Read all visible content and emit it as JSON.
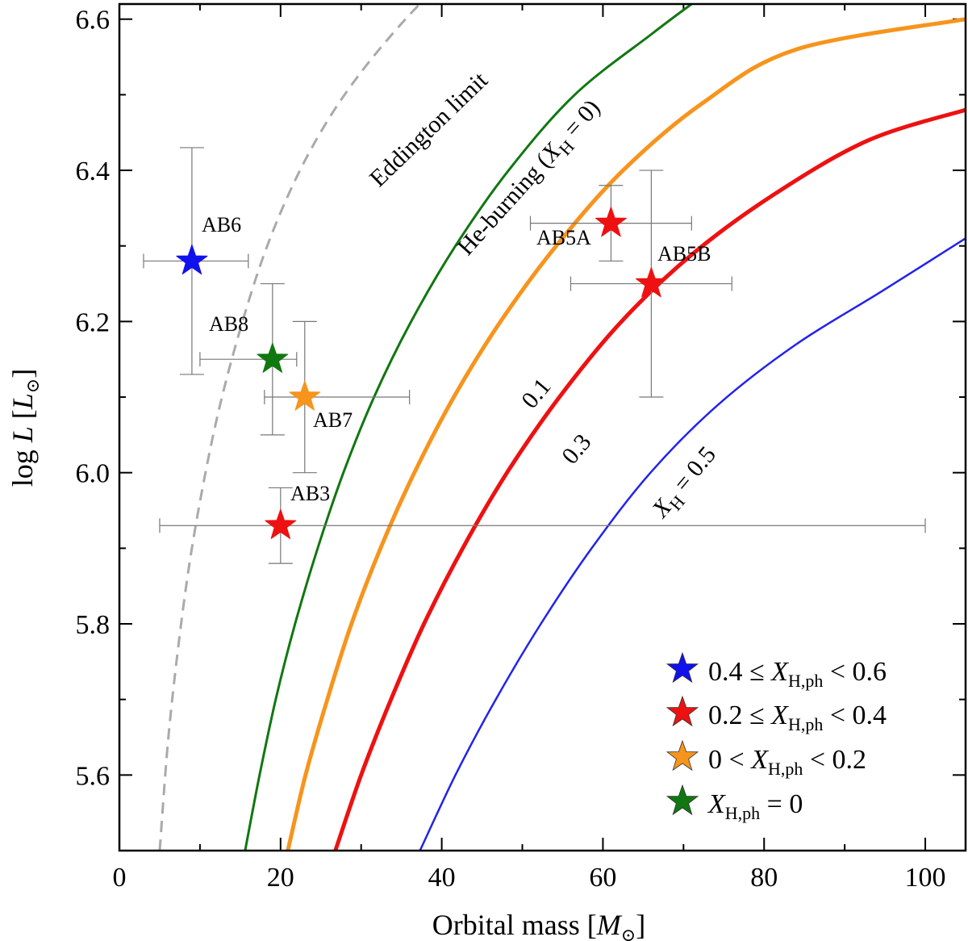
{
  "chart_data": {
    "type": "scatter",
    "xlabel_main": "Orbital mass [",
    "xlabel_sym": "M",
    "xlabel_sub": "⊙",
    "xlabel_end": "]",
    "ylabel_main": "log ",
    "ylabel_sym": "L",
    "ylabel_bracket_open": " [",
    "ylabel_sym2": "L",
    "ylabel_sub": "⊙",
    "ylabel_end": "]",
    "xlim": [
      0,
      105
    ],
    "ylim": [
      5.5,
      6.62
    ],
    "xticks": [
      0,
      20,
      40,
      60,
      80,
      100
    ],
    "xtick_labels": [
      "0",
      "20",
      "40",
      "60",
      "80",
      "100"
    ],
    "yticks": [
      5.6,
      5.8,
      6.0,
      6.2,
      6.4,
      6.6
    ],
    "ytick_labels": [
      "5.6",
      "5.8",
      "6.0",
      "6.2",
      "6.4",
      "6.6"
    ],
    "curves": [
      {
        "name": "Eddington limit",
        "label": "Eddington limit",
        "color": "#aaaaaa",
        "dashed": true,
        "width": 3,
        "points": [
          [
            5.0,
            5.5
          ],
          [
            6,
            5.64
          ],
          [
            7.2,
            5.76
          ],
          [
            8.7,
            5.88
          ],
          [
            10.5,
            5.99
          ],
          [
            12.5,
            6.09
          ],
          [
            15,
            6.19
          ],
          [
            18,
            6.29
          ],
          [
            21.5,
            6.38
          ],
          [
            25.5,
            6.46
          ],
          [
            30,
            6.53
          ],
          [
            35.5,
            6.6
          ],
          [
            41,
            6.66
          ]
        ]
      },
      {
        "name": "He-burning (XH = 0)",
        "label_main": "He-burning (",
        "label_sym": "X",
        "label_sub": "H",
        "label_end": " = 0)",
        "color": "#117711",
        "dashed": false,
        "width": 3,
        "points": [
          [
            15.6,
            5.5
          ],
          [
            17.4,
            5.6
          ],
          [
            19.4,
            5.7
          ],
          [
            21.8,
            5.8
          ],
          [
            24.6,
            5.9
          ],
          [
            27.8,
            6.0
          ],
          [
            31.6,
            6.1
          ],
          [
            36.2,
            6.2
          ],
          [
            41.7,
            6.3
          ],
          [
            48.3,
            6.4
          ],
          [
            56.5,
            6.5
          ],
          [
            66,
            6.58
          ],
          [
            71,
            6.62
          ]
        ]
      },
      {
        "name": "XH = 0.1",
        "label": "0.1",
        "color": "#f7941d",
        "dashed": false,
        "width": 5,
        "points": [
          [
            20.9,
            5.5
          ],
          [
            23.1,
            5.6
          ],
          [
            25.8,
            5.7
          ],
          [
            28.8,
            5.8
          ],
          [
            32.4,
            5.9
          ],
          [
            36.6,
            6.0
          ],
          [
            41.5,
            6.1
          ],
          [
            47.3,
            6.2
          ],
          [
            54.2,
            6.3
          ],
          [
            62.5,
            6.4
          ],
          [
            72.5,
            6.49
          ],
          [
            84,
            6.56
          ],
          [
            105,
            6.6
          ]
        ]
      },
      {
        "name": "XH = 0.3",
        "label": "0.3",
        "color": "#ee1111",
        "dashed": false,
        "width": 5,
        "points": [
          [
            26.8,
            5.5
          ],
          [
            30,
            5.6
          ],
          [
            33.7,
            5.7
          ],
          [
            37.8,
            5.8
          ],
          [
            42.6,
            5.9
          ],
          [
            48.1,
            6.0
          ],
          [
            54.6,
            6.1
          ],
          [
            62.3,
            6.2
          ],
          [
            71.2,
            6.29
          ],
          [
            81.5,
            6.37
          ],
          [
            93,
            6.44
          ],
          [
            105,
            6.48
          ]
        ]
      },
      {
        "name": "XH = 0.5",
        "label_sym": "X",
        "label_sub": "H",
        "label_end": " = 0.5",
        "color": "#2222ee",
        "dashed": false,
        "width": 2.5,
        "points": [
          [
            37.3,
            5.5
          ],
          [
            41.7,
            5.6
          ],
          [
            46.7,
            5.7
          ],
          [
            52.3,
            5.8
          ],
          [
            58.6,
            5.9
          ],
          [
            65.9,
            6.0
          ],
          [
            74.3,
            6.09
          ],
          [
            84,
            6.17
          ],
          [
            94.6,
            6.24
          ],
          [
            105,
            6.31
          ]
        ]
      }
    ],
    "stars": [
      {
        "name": "AB6",
        "label": "AB6",
        "x": 9,
        "y": 6.28,
        "xerr": [
          3,
          16
        ],
        "yerr": [
          6.13,
          6.43
        ],
        "color": "#1111ee"
      },
      {
        "name": "AB8",
        "label": "AB8",
        "x": 19,
        "y": 6.15,
        "xerr": [
          10,
          22
        ],
        "yerr": [
          6.05,
          6.25
        ],
        "color": "#117711"
      },
      {
        "name": "AB7",
        "label": "AB7",
        "x": 23,
        "y": 6.1,
        "xerr": [
          18,
          36
        ],
        "yerr": [
          6.0,
          6.2
        ],
        "color": "#f7941d"
      },
      {
        "name": "AB3",
        "label": "AB3",
        "x": 20,
        "y": 5.93,
        "xerr": [
          5,
          100
        ],
        "yerr": [
          5.88,
          5.98
        ],
        "color": "#ee1111"
      },
      {
        "name": "AB5A",
        "label": "AB5A",
        "x": 61,
        "y": 6.33,
        "xerr": [
          51,
          71
        ],
        "yerr": [
          6.28,
          6.38
        ],
        "color": "#ee1111"
      },
      {
        "name": "AB5B",
        "label": "AB5B",
        "x": 66,
        "y": 6.25,
        "xerr": [
          56,
          76
        ],
        "yerr": [
          6.1,
          6.4
        ],
        "color": "#ee1111"
      }
    ],
    "legend": [
      {
        "color": "#1111ee",
        "pre": "0.4 ≤ ",
        "sym": "X",
        "sub": "H,ph",
        "post": " < 0.6"
      },
      {
        "color": "#ee1111",
        "pre": "0.2 ≤ ",
        "sym": "X",
        "sub": "H,ph",
        "post": " < 0.4"
      },
      {
        "color": "#f7941d",
        "pre": "0 < ",
        "sym": "X",
        "sub": "H,ph",
        "post": " < 0.2"
      },
      {
        "color": "#117711",
        "pre": "",
        "sym": "X",
        "sub": "H,ph",
        "post": " = 0"
      }
    ]
  }
}
